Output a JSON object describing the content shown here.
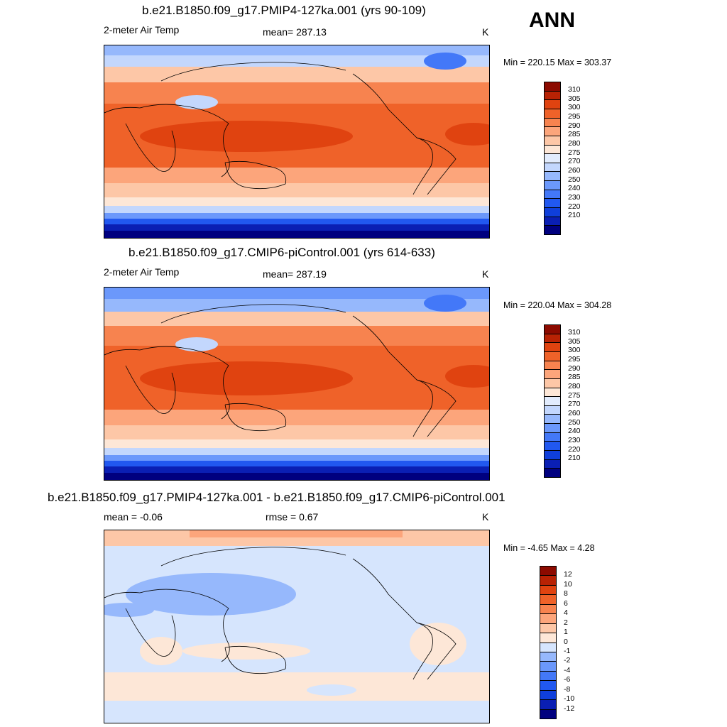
{
  "season": "ANN",
  "colors": {
    "abs_scale": [
      "#00007f",
      "#0a1fb4",
      "#0f3fdb",
      "#2158f0",
      "#4378f8",
      "#6b98fb",
      "#96b8fc",
      "#c3d7fd",
      "#e2ecfd",
      "#fde7d7",
      "#fdc7a7",
      "#fca57b",
      "#f7834f",
      "#ef6229",
      "#e04310",
      "#b82204",
      "#8c0a00"
    ],
    "diff_scale": [
      "#00007f",
      "#0a1fb4",
      "#0f3fdb",
      "#2158f0",
      "#4378f8",
      "#6b98fb",
      "#96b8fc",
      "#d6e5fd",
      "#fde7d7",
      "#fdc7a7",
      "#fca57b",
      "#f7834f",
      "#ef6229",
      "#e04310",
      "#b82204",
      "#8c0a00"
    ]
  },
  "panels": [
    {
      "title": "b.e21.B1850.f09_g17.PMIP4-127ka.001 (yrs 90-109)",
      "left_label": "2-meter Air Temp",
      "center_label": "mean= 287.13",
      "units": "K",
      "minmax": "Min = 220.15 Max = 303.37",
      "colorbar_labels": [
        "310",
        "305",
        "300",
        "295",
        "290",
        "285",
        "280",
        "275",
        "270",
        "260",
        "250",
        "240",
        "230",
        "220",
        "210"
      ],
      "field": {
        "mean": 287.13,
        "min": 220.15,
        "max": 303.37
      }
    },
    {
      "title": "b.e21.B1850.f09_g17.CMIP6-piControl.001 (yrs 614-633)",
      "left_label": "2-meter Air Temp",
      "center_label": "mean= 287.19",
      "units": "K",
      "minmax": "Min = 220.04 Max = 304.28",
      "colorbar_labels": [
        "310",
        "305",
        "300",
        "295",
        "290",
        "285",
        "280",
        "275",
        "270",
        "260",
        "250",
        "240",
        "230",
        "220",
        "210"
      ],
      "field": {
        "mean": 287.19,
        "min": 220.04,
        "max": 304.28
      }
    },
    {
      "title": "b.e21.B1850.f09_g17.PMIP4-127ka.001 - b.e21.B1850.f09_g17.CMIP6-piControl.001",
      "left_label": "mean =  -0.06",
      "center_label": "rmse =   0.67",
      "units": "K",
      "minmax": "Min =  -4.65 Max =   4.28",
      "colorbar_labels": [
        "12",
        "10",
        "8",
        "6",
        "4",
        "2",
        "1",
        "0",
        "-1",
        "-2",
        "-4",
        "-6",
        "-8",
        "-10",
        "-12"
      ],
      "field": {
        "mean": -0.06,
        "rmse": 0.67,
        "min": -4.65,
        "max": 4.28
      }
    }
  ]
}
